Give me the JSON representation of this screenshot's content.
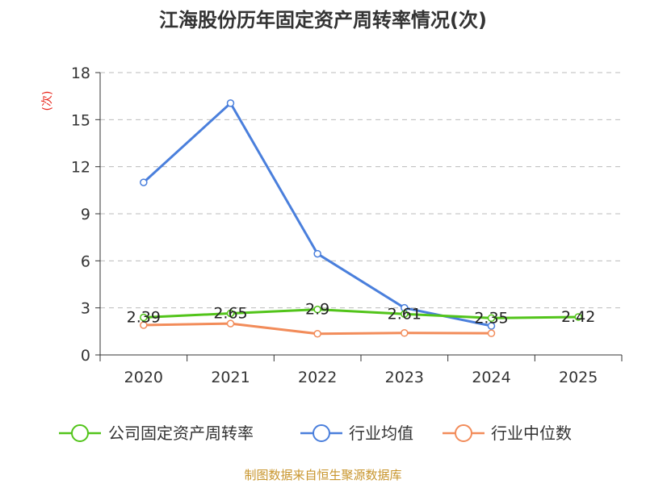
{
  "chart_data": {
    "type": "line",
    "title": "江海股份历年固定资产周转率情况(次)",
    "ylabel": "(次)",
    "xlabel": "",
    "categories": [
      "2020",
      "2021",
      "2022",
      "2023",
      "2024",
      "2025"
    ],
    "ylim": [
      0,
      18
    ],
    "yticks": [
      0,
      3,
      6,
      9,
      12,
      15,
      18
    ],
    "grid": true,
    "legend_position": "bottom",
    "series": [
      {
        "name": "公司固定资产周转率",
        "color": "#52c41a",
        "values": [
          2.39,
          2.65,
          2.9,
          2.61,
          2.35,
          2.42
        ],
        "labels": [
          "2.39",
          "2.65",
          "2.9",
          "2.61",
          "2.35",
          "2.42"
        ]
      },
      {
        "name": "行业均值",
        "color": "#4a7fdc",
        "values": [
          11.0,
          16.05,
          6.45,
          3.0,
          1.85,
          null
        ]
      },
      {
        "name": "行业中位数",
        "color": "#f28c5a",
        "values": [
          1.9,
          2.0,
          1.35,
          1.4,
          1.38,
          null
        ]
      }
    ]
  },
  "footer": {
    "source": "制图数据来自恒生聚源数据库"
  }
}
